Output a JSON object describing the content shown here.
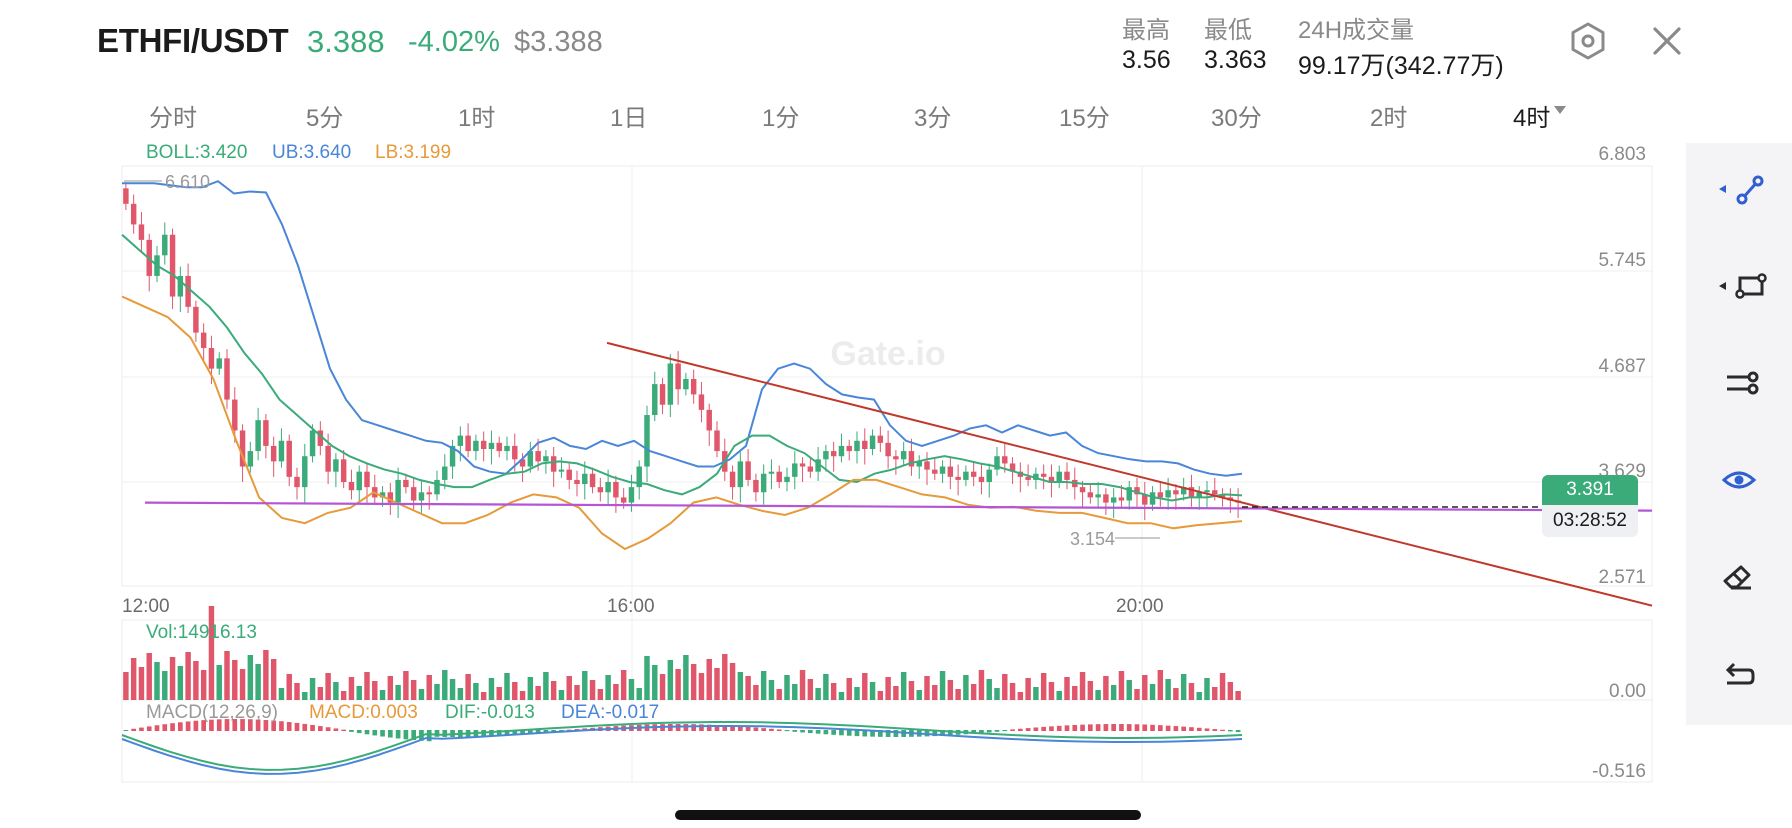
{
  "header": {
    "pair": "ETHFI/USDT",
    "price": "3.388",
    "change": "-4.02%",
    "usd_price": "$3.388",
    "stats": [
      {
        "label": "最高",
        "value": "3.56"
      },
      {
        "label": "最低",
        "value": "3.363"
      },
      {
        "label": "24H成交量",
        "value": "99.17万(342.77万)"
      }
    ]
  },
  "tabs": [
    "分时",
    "5分",
    "1时",
    "1日",
    "1分",
    "3分",
    "15分",
    "30分",
    "2时",
    "4时"
  ],
  "active_tab": "4时",
  "indicators": {
    "boll": "BOLL:3.420",
    "ub": "UB:3.640",
    "lb": "LB:3.199",
    "vol": "Vol:14916.13",
    "macd_params": "MACD(12,26,9)",
    "macd": "MACD:0.003",
    "dif": "DIF:-0.013",
    "dea": "DEA:-0.017"
  },
  "axis": {
    "price_ticks": [
      "6.803",
      "5.745",
      "4.687",
      "3.629",
      "2.571"
    ],
    "time_ticks": [
      "12:00",
      "16:00",
      "20:00"
    ],
    "vol_tick": "0.00",
    "macd_tick": "-0.516",
    "max_marker": "6.610",
    "min_marker": "3.154"
  },
  "price_tag": {
    "price": "3.391",
    "countdown": "03:28:52"
  },
  "watermark": "Gate.io",
  "toolbar": [
    "line-tool-icon",
    "rectangle-tool-icon",
    "parallel-channel-icon",
    "visibility-eye-icon",
    "eraser-icon",
    "undo-icon"
  ],
  "colors": {
    "up": "#3aab79",
    "down": "#e0566a",
    "boll_mid": "#3aab79",
    "boll_upper": "#4a86d8",
    "boll_lower": "#e69a3a",
    "trendline": "#c0392b",
    "support": "#b455d6"
  },
  "chart_data": {
    "type": "candlestick",
    "price_range": [
      2.571,
      6.803
    ],
    "close": [
      6.3,
      6.1,
      5.95,
      5.6,
      5.8,
      6.0,
      5.4,
      5.6,
      5.3,
      5.05,
      4.9,
      4.7,
      4.8,
      4.4,
      4.1,
      3.75,
      3.9,
      4.2,
      3.95,
      3.8,
      4.0,
      3.65,
      3.55,
      3.85,
      4.1,
      3.95,
      3.7,
      3.82,
      3.6,
      3.52,
      3.7,
      3.55,
      3.45,
      3.5,
      3.4,
      3.62,
      3.55,
      3.42,
      3.5,
      3.48,
      3.62,
      3.75,
      3.95,
      4.05,
      3.9,
      4.0,
      3.92,
      3.98,
      3.9,
      3.95,
      3.82,
      3.75,
      3.9,
      3.8,
      3.85,
      3.7,
      3.72,
      3.62,
      3.58,
      3.68,
      3.55,
      3.5,
      3.6,
      3.45,
      3.4,
      3.55,
      3.75,
      4.25,
      4.55,
      4.35,
      4.75,
      4.5,
      4.6,
      4.45,
      4.3,
      4.1,
      3.9,
      3.7,
      3.55,
      3.8,
      3.62,
      3.5,
      3.68,
      3.7,
      3.6,
      3.65,
      3.78,
      3.75,
      3.7,
      3.82,
      3.9,
      3.85,
      3.95,
      3.9,
      4.0,
      3.92,
      4.05,
      3.98,
      3.85,
      3.82,
      3.9,
      3.75,
      3.8,
      3.72,
      3.68,
      3.75,
      3.65,
      3.62,
      3.7,
      3.65,
      3.6,
      3.72,
      3.85,
      3.78,
      3.7,
      3.65,
      3.62,
      3.68,
      3.65,
      3.6,
      3.7,
      3.62,
      3.55,
      3.5,
      3.45,
      3.48,
      3.4,
      3.45,
      3.42,
      3.55,
      3.48,
      3.38,
      3.5,
      3.45,
      3.52,
      3.48,
      3.55,
      3.45,
      3.5,
      3.52,
      3.48,
      3.45,
      3.42,
      3.4
    ],
    "boll_upper": [
      6.5,
      6.5,
      6.5,
      6.48,
      6.46,
      6.46,
      6.52,
      6.4,
      6.42,
      6.41,
      6.1,
      5.7,
      5.2,
      4.7,
      4.4,
      4.2,
      4.15,
      4.1,
      4.05,
      4.0,
      3.98,
      3.9,
      3.75,
      3.7,
      3.68,
      3.82,
      3.98,
      4.03,
      3.95,
      3.92,
      4.0,
      3.95,
      4.0,
      3.9,
      3.85,
      3.8,
      3.75,
      3.75,
      3.82,
      3.95,
      4.5,
      4.7,
      4.75,
      4.7,
      4.55,
      4.45,
      4.42,
      4.4,
      4.15,
      4.0,
      3.95,
      4.0,
      4.05,
      4.12,
      4.15,
      4.08,
      4.15,
      4.1,
      4.05,
      4.08,
      3.95,
      3.88,
      3.85,
      3.82,
      3.8,
      3.8,
      3.78,
      3.72,
      3.68,
      3.66,
      3.68
    ],
    "boll_mid": [
      6.0,
      5.85,
      5.7,
      5.6,
      5.45,
      5.3,
      5.1,
      4.85,
      4.65,
      4.4,
      4.25,
      4.1,
      3.95,
      3.85,
      3.78,
      3.72,
      3.68,
      3.62,
      3.58,
      3.55,
      3.55,
      3.62,
      3.68,
      3.7,
      3.78,
      3.8,
      3.78,
      3.72,
      3.65,
      3.6,
      3.58,
      3.52,
      3.48,
      3.55,
      3.68,
      3.95,
      4.05,
      4.05,
      3.95,
      3.88,
      3.75,
      3.62,
      3.6,
      3.68,
      3.72,
      3.78,
      3.82,
      3.85,
      3.82,
      3.78,
      3.75,
      3.7,
      3.65,
      3.6,
      3.6,
      3.58,
      3.58,
      3.55,
      3.5,
      3.45,
      3.42,
      3.45,
      3.45,
      3.48,
      3.47
    ],
    "boll_lower": [
      5.4,
      5.3,
      5.2,
      5.0,
      4.6,
      4.0,
      3.45,
      3.25,
      3.2,
      3.3,
      3.35,
      3.5,
      3.4,
      3.3,
      3.2,
      3.2,
      3.28,
      3.4,
      3.48,
      3.45,
      3.35,
      3.1,
      2.95,
      3.05,
      3.2,
      3.4,
      3.45,
      3.38,
      3.32,
      3.28,
      3.35,
      3.48,
      3.62,
      3.62,
      3.55,
      3.48,
      3.45,
      3.38,
      3.35,
      3.36,
      3.32,
      3.3,
      3.3,
      3.25,
      3.2,
      3.2,
      3.15,
      3.18,
      3.2,
      3.22
    ],
    "trendline_points": [
      [
        4.95,
        4.95
      ],
      [
        2.4,
        2.4
      ]
    ],
    "support_price": 3.4,
    "time_ticks": [
      "12:00",
      "16:00",
      "20:00"
    ]
  }
}
